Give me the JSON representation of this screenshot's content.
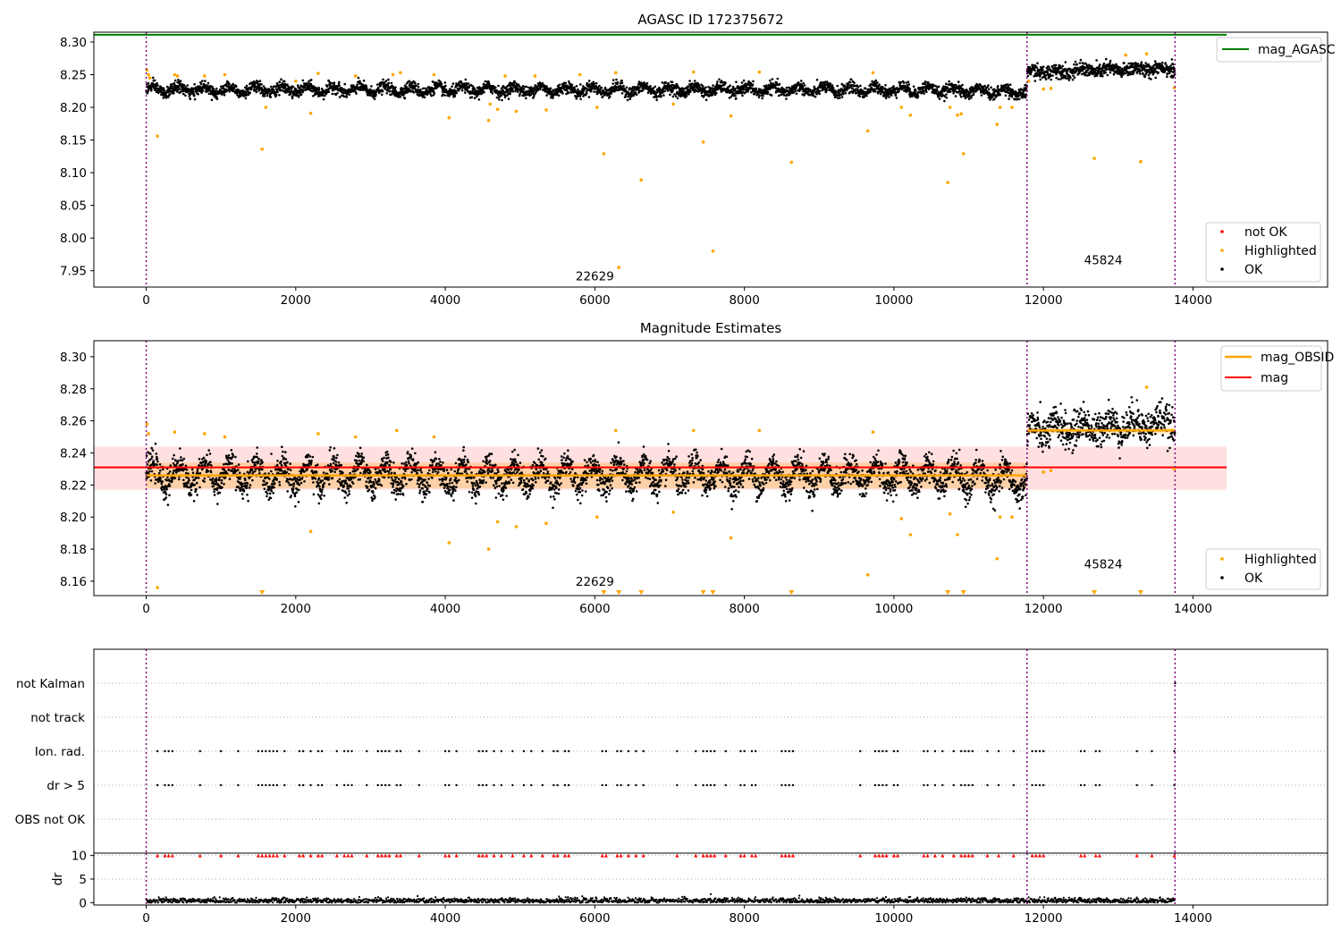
{
  "chart_data": [
    {
      "type": "scatter",
      "title": "AGASC ID 172375672",
      "xlim": [
        -700,
        15800
      ],
      "ylim": [
        7.925,
        8.315
      ],
      "xticks": [
        "0",
        "2000",
        "4000",
        "6000",
        "8000",
        "10000",
        "12000",
        "14000"
      ],
      "yticks": [
        "7.95",
        "8.00",
        "8.05",
        "8.10",
        "8.15",
        "8.20",
        "8.25",
        "8.30"
      ],
      "agasc_mag": 8.311,
      "obsid_boundaries": [
        0,
        11780,
        13760
      ],
      "obsids": [
        {
          "label": "22629",
          "x": 6000,
          "y": 7.935
        },
        {
          "label": "45824",
          "x": 12800,
          "y": 7.96
        }
      ],
      "series": [
        {
          "name": "not OK",
          "color": "#ff0000",
          "points": []
        },
        {
          "name": "Highlighted",
          "color": "#ffa500",
          "points": [
            [
              10,
              8.257
            ],
            [
              30,
              8.25
            ],
            [
              50,
              8.245
            ],
            [
              150,
              8.156
            ],
            [
              380,
              8.25
            ],
            [
              420,
              8.248
            ],
            [
              780,
              8.248
            ],
            [
              1050,
              8.25
            ],
            [
              1550,
              8.136
            ],
            [
              1600,
              8.2
            ],
            [
              2000,
              8.24
            ],
            [
              2200,
              8.191
            ],
            [
              2300,
              8.252
            ],
            [
              2800,
              8.248
            ],
            [
              3300,
              8.25
            ],
            [
              3400,
              8.253
            ],
            [
              3850,
              8.25
            ],
            [
              4050,
              8.184
            ],
            [
              4580,
              8.18
            ],
            [
              4600,
              8.205
            ],
            [
              4700,
              8.197
            ],
            [
              4800,
              8.248
            ],
            [
              4950,
              8.194
            ],
            [
              5200,
              8.248
            ],
            [
              5350,
              8.196
            ],
            [
              5800,
              8.25
            ],
            [
              6030,
              8.2
            ],
            [
              6120,
              8.129
            ],
            [
              6280,
              8.253
            ],
            [
              6320,
              7.955
            ],
            [
              6620,
              8.089
            ],
            [
              7050,
              8.205
            ],
            [
              7320,
              8.254
            ],
            [
              7450,
              8.147
            ],
            [
              7580,
              7.98
            ],
            [
              7820,
              8.187
            ],
            [
              8200,
              8.254
            ],
            [
              8630,
              8.116
            ],
            [
              9650,
              8.164
            ],
            [
              9720,
              8.253
            ],
            [
              10100,
              8.2
            ],
            [
              10220,
              8.188
            ],
            [
              10720,
              8.085
            ],
            [
              10750,
              8.2
            ],
            [
              10850,
              8.188
            ],
            [
              10900,
              8.19
            ],
            [
              10930,
              8.129
            ],
            [
              11380,
              8.174
            ],
            [
              11420,
              8.2
            ],
            [
              11580,
              8.2
            ],
            [
              11800,
              8.24
            ],
            [
              12000,
              8.228
            ],
            [
              12100,
              8.229
            ],
            [
              12680,
              8.122
            ],
            [
              13100,
              8.28
            ],
            [
              13300,
              8.117
            ],
            [
              13380,
              8.282
            ],
            [
              13750,
              8.23
            ]
          ]
        },
        {
          "name": "OK",
          "color": "#000000",
          "trend": "agasc_top"
        }
      ],
      "legend_top": [
        "mag_AGASC"
      ],
      "legend_bottom": [
        "not OK",
        "Highlighted",
        "OK"
      ]
    },
    {
      "type": "scatter",
      "title": "Magnitude Estimates",
      "xlim": [
        -700,
        15800
      ],
      "ylim": [
        8.151,
        8.31
      ],
      "xticks": [
        "0",
        "2000",
        "4000",
        "6000",
        "8000",
        "10000",
        "12000",
        "14000"
      ],
      "yticks": [
        "8.16",
        "8.18",
        "8.20",
        "8.22",
        "8.24",
        "8.26",
        "8.28",
        "8.30"
      ],
      "obsid_boundaries": [
        0,
        11780,
        13760
      ],
      "mag": 8.231,
      "mag_band": [
        8.217,
        8.244
      ],
      "mag_obsid": [
        {
          "x0": 0,
          "x1": 11780,
          "value": 8.226,
          "band": [
            8.218,
            8.234
          ]
        },
        {
          "x0": 11780,
          "x1": 13760,
          "value": 8.254,
          "band": [
            8.252,
            8.256
          ]
        }
      ],
      "obsids": [
        {
          "label": "22629",
          "x": 6000,
          "y": 8.157
        },
        {
          "label": "45824",
          "x": 12800,
          "y": 8.168
        }
      ],
      "series": [
        {
          "name": "Highlighted",
          "color": "#ffa500",
          "points": [
            [
              10,
              8.258
            ],
            [
              30,
              8.252
            ],
            [
              150,
              8.156
            ],
            [
              380,
              8.253
            ],
            [
              780,
              8.252
            ],
            [
              1050,
              8.25
            ],
            [
              2200,
              8.191
            ],
            [
              2300,
              8.252
            ],
            [
              2800,
              8.25
            ],
            [
              3350,
              8.254
            ],
            [
              3850,
              8.25
            ],
            [
              4050,
              8.184
            ],
            [
              4580,
              8.18
            ],
            [
              4700,
              8.197
            ],
            [
              4950,
              8.194
            ],
            [
              5350,
              8.196
            ],
            [
              6030,
              8.2
            ],
            [
              6280,
              8.254
            ],
            [
              7050,
              8.203
            ],
            [
              7320,
              8.254
            ],
            [
              7820,
              8.187
            ],
            [
              8200,
              8.254
            ],
            [
              9650,
              8.164
            ],
            [
              9720,
              8.253
            ],
            [
              10100,
              8.199
            ],
            [
              10220,
              8.189
            ],
            [
              10750,
              8.202
            ],
            [
              10850,
              8.189
            ],
            [
              11380,
              8.174
            ],
            [
              11420,
              8.2
            ],
            [
              11580,
              8.2
            ],
            [
              12000,
              8.228
            ],
            [
              12100,
              8.229
            ],
            [
              13380,
              8.281
            ],
            [
              13750,
              8.23
            ]
          ]
        },
        {
          "name": "OK",
          "color": "#000000",
          "trend": "estimates"
        }
      ],
      "offscale_low_x": [
        1550,
        6120,
        6320,
        6620,
        7450,
        7580,
        8630,
        10720,
        10930,
        12680,
        13300
      ],
      "legend_top": [
        "mag_OBSID",
        "mag"
      ],
      "legend_bottom": [
        "Highlighted",
        "OK"
      ]
    },
    {
      "type": "scatter",
      "xlim": [
        -700,
        15800
      ],
      "ylabels": [
        "not Kalman",
        "not track",
        "Ion. rad.",
        "dr > 5",
        "OBS not OK"
      ],
      "obsid_boundaries": [
        0,
        11780,
        13760
      ],
      "flag_x": [
        150,
        250,
        300,
        350,
        720,
        1000,
        1230,
        1500,
        1550,
        1600,
        1650,
        1700,
        1750,
        1850,
        2050,
        2100,
        2200,
        2300,
        2350,
        2550,
        2650,
        2700,
        2750,
        2950,
        3100,
        3150,
        3200,
        3250,
        3350,
        3400,
        3650,
        4000,
        4050,
        4150,
        4450,
        4500,
        4550,
        4650,
        4750,
        4900,
        5050,
        5150,
        5300,
        5450,
        5500,
        5600,
        5650,
        6100,
        6150,
        6300,
        6350,
        6450,
        6550,
        6650,
        7100,
        7350,
        7450,
        7500,
        7550,
        7600,
        7750,
        7950,
        8000,
        8100,
        8150,
        8500,
        8550,
        8600,
        8650,
        9550,
        9750,
        9800,
        9850,
        9900,
        10000,
        10050,
        10400,
        10450,
        10550,
        10650,
        10800,
        10900,
        10950,
        11000,
        11050,
        11250,
        11400,
        11600,
        11850,
        11900,
        11950,
        12000,
        12500,
        12550,
        12700,
        12750,
        13250,
        13450,
        13750
      ],
      "not_kalman_x": [
        13760
      ]
    },
    {
      "type": "scatter",
      "ylabel": "dr",
      "xlim": [
        -700,
        15800
      ],
      "ylim": [
        -0.5,
        10.5
      ],
      "xticks": [
        "0",
        "2000",
        "4000",
        "6000",
        "8000",
        "10000",
        "12000",
        "14000"
      ],
      "yticks": [
        "0",
        "5",
        "10"
      ],
      "obsid_boundaries": [
        0,
        11780,
        13760
      ],
      "clipped_at": 10,
      "clipped_x": [
        150,
        250,
        300,
        350,
        720,
        1000,
        1230,
        1500,
        1550,
        1600,
        1650,
        1700,
        1750,
        1850,
        2050,
        2100,
        2200,
        2300,
        2350,
        2550,
        2650,
        2700,
        2750,
        2950,
        3100,
        3150,
        3200,
        3250,
        3350,
        3400,
        3650,
        4000,
        4050,
        4150,
        4450,
        4500,
        4550,
        4650,
        4750,
        4900,
        5050,
        5150,
        5300,
        5450,
        5500,
        5600,
        5650,
        6100,
        6150,
        6300,
        6350,
        6450,
        6550,
        6650,
        7100,
        7350,
        7450,
        7500,
        7550,
        7600,
        7750,
        7950,
        8000,
        8100,
        8150,
        8500,
        8550,
        8600,
        8650,
        9550,
        9750,
        9800,
        9850,
        9900,
        10000,
        10050,
        10400,
        10450,
        10550,
        10650,
        10800,
        10900,
        10950,
        11000,
        11050,
        11250,
        11400,
        11600,
        11850,
        11900,
        11950,
        12000,
        12500,
        12550,
        12700,
        12750,
        13250,
        13450,
        13750
      ],
      "typical_dr": [
        0,
        1.0
      ]
    }
  ]
}
